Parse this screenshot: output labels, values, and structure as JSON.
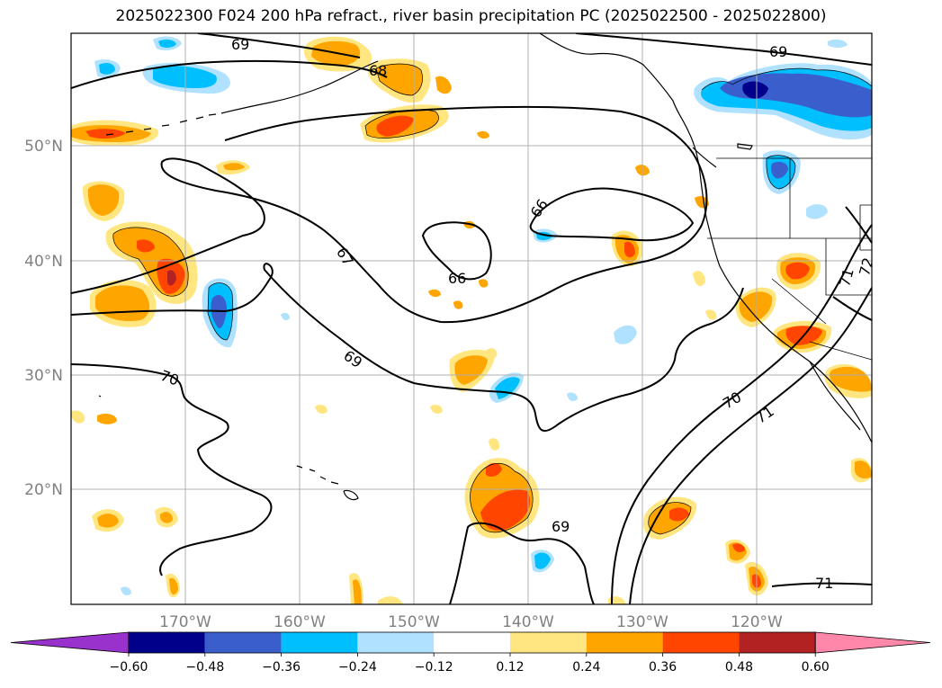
{
  "title": "2025022300 F024 200 hPa refract., river basin precipitation PC (2025022500 - 2025022800)",
  "lon_labels": [
    "170°W",
    "160°W",
    "150°W",
    "140°W",
    "130°W",
    "120°W"
  ],
  "lat_labels": [
    "50°N",
    "40°N",
    "30°N",
    "20°N"
  ],
  "contour_labels": [
    "69",
    "68",
    "69",
    "66",
    "67",
    "66",
    "70",
    "69",
    "70",
    "71",
    "71",
    "71",
    "72",
    "69"
  ],
  "colorbar": {
    "ticks": [
      "−0.60",
      "−0.48",
      "−0.36",
      "−0.24",
      "−0.12",
      "0.12",
      "0.24",
      "0.36",
      "0.48",
      "0.60"
    ],
    "colors": [
      "#9932cc",
      "#00008b",
      "#3a5fcd",
      "#00bfff",
      "#b0e2ff",
      "#ffffff",
      "#ffe680",
      "#ffa500",
      "#ff4500",
      "#b22222",
      "#ff88aa"
    ]
  },
  "fill_colors": {
    "light_blue": "#b0e2ff",
    "cyan": "#00bfff",
    "blue": "#3a5fcd",
    "navy": "#00008b",
    "yellow": "#ffe680",
    "orange": "#ffa500",
    "red_orange": "#ff4500",
    "dark_red": "#b22222"
  }
}
